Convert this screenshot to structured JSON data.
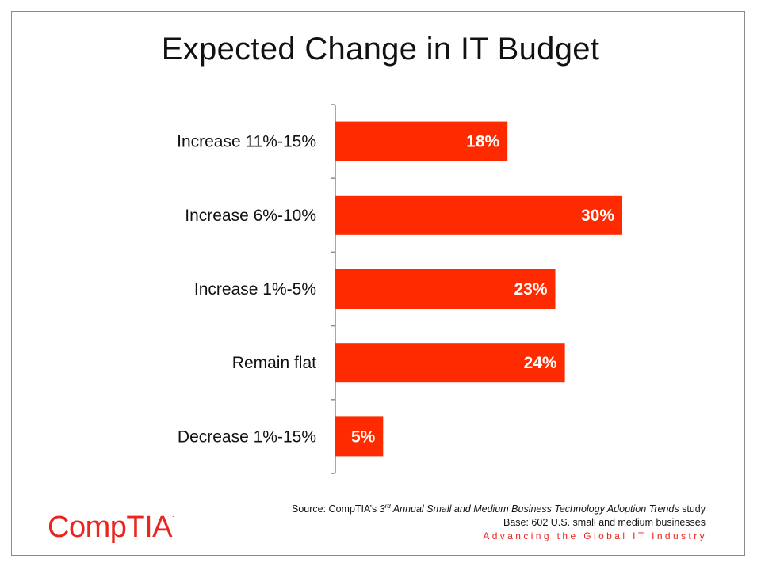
{
  "title": "Expected Change in IT Budget",
  "chart_data": {
    "type": "bar",
    "orientation": "horizontal",
    "categories": [
      "Increase 11%-15%",
      "Increase 6%-10%",
      "Increase 1%-5%",
      "Remain flat",
      "Decrease 1%-15%"
    ],
    "values": [
      18,
      30,
      23,
      24,
      5
    ],
    "value_labels": [
      "18%",
      "30%",
      "23%",
      "24%",
      "5%"
    ],
    "xlim": [
      0,
      30
    ],
    "bar_color": "#ff2a00",
    "grid": false
  },
  "footer": {
    "source_prefix": "Source: CompTIA’s ",
    "source_ordinal": "3",
    "source_ordinal_suffix": "rd",
    "source_study": " Annual Small and Medium Business Technology Adoption Trends",
    "source_suffix": " study",
    "base": "Base: 602 U.S. small and medium businesses",
    "tagline": "Advancing the Global IT Industry"
  },
  "logo": {
    "text": "CompTIA",
    "mark": "."
  }
}
